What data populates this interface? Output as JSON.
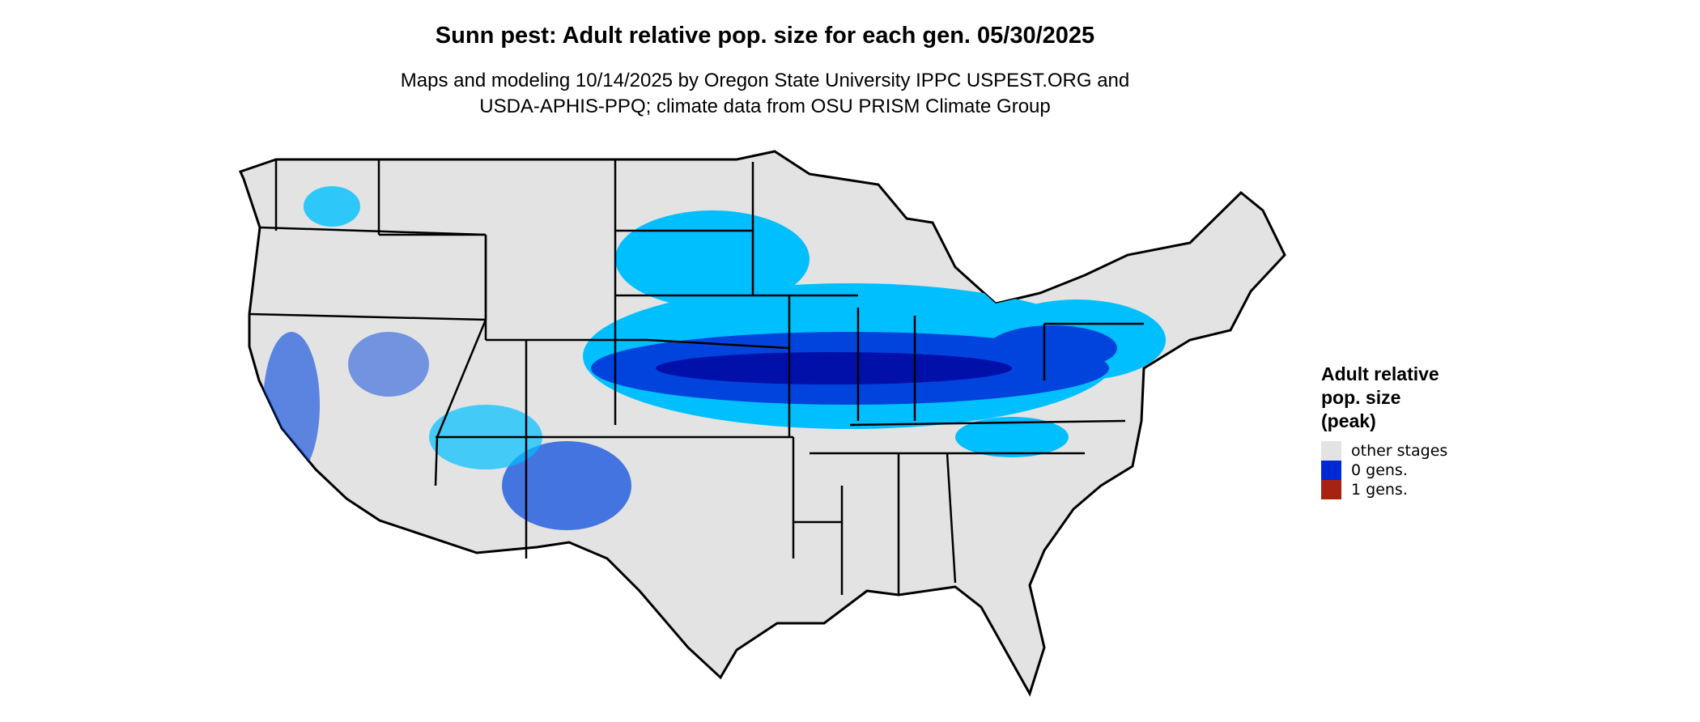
{
  "title": "Sunn pest: Adult relative pop. size for each gen. 05/30/2025",
  "subtitle_lines": [
    "Maps and modeling 10/14/2025 by Oregon State University IPPC USPEST.ORG and",
    "USDA-APHIS-PPQ; climate data from OSU PRISM Climate Group"
  ],
  "legend": {
    "title_lines": [
      "Adult relative",
      "pop. size",
      "(peak)"
    ],
    "items": [
      {
        "label": "other stages",
        "color": "#e3e3e3"
      },
      {
        "label": "0 gens.",
        "color": "#0029d6"
      },
      {
        "label": "1 gens.",
        "color": "#a62313"
      }
    ]
  },
  "map_colors": {
    "land": "#e3e3e3",
    "light_blue": "#00bfff",
    "mid_blue": "#0044dd",
    "dark_blue": "#0010a8",
    "border": "#000000"
  }
}
